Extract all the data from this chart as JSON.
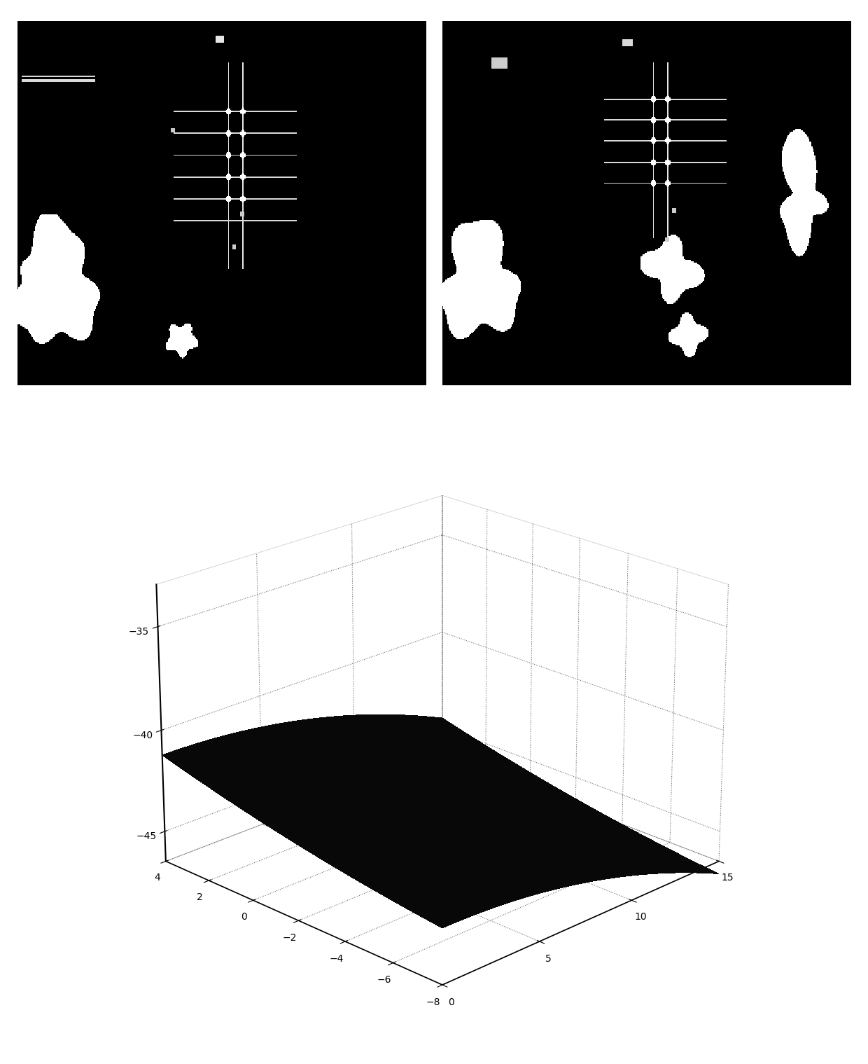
{
  "fig_width": 12.4,
  "fig_height": 15.19,
  "dpi": 100,
  "x3d_range": [
    0,
    15
  ],
  "y3d_range": [
    -8,
    4
  ],
  "z3d_range": [
    -46.5,
    -33
  ],
  "x3d_ticks": [
    0,
    5,
    10,
    15
  ],
  "y3d_ticks": [
    -8,
    -6,
    -4,
    -2,
    0,
    2,
    4
  ],
  "z3d_ticks": [
    -45,
    -40,
    -35
  ],
  "elev": 22,
  "azim": 225
}
